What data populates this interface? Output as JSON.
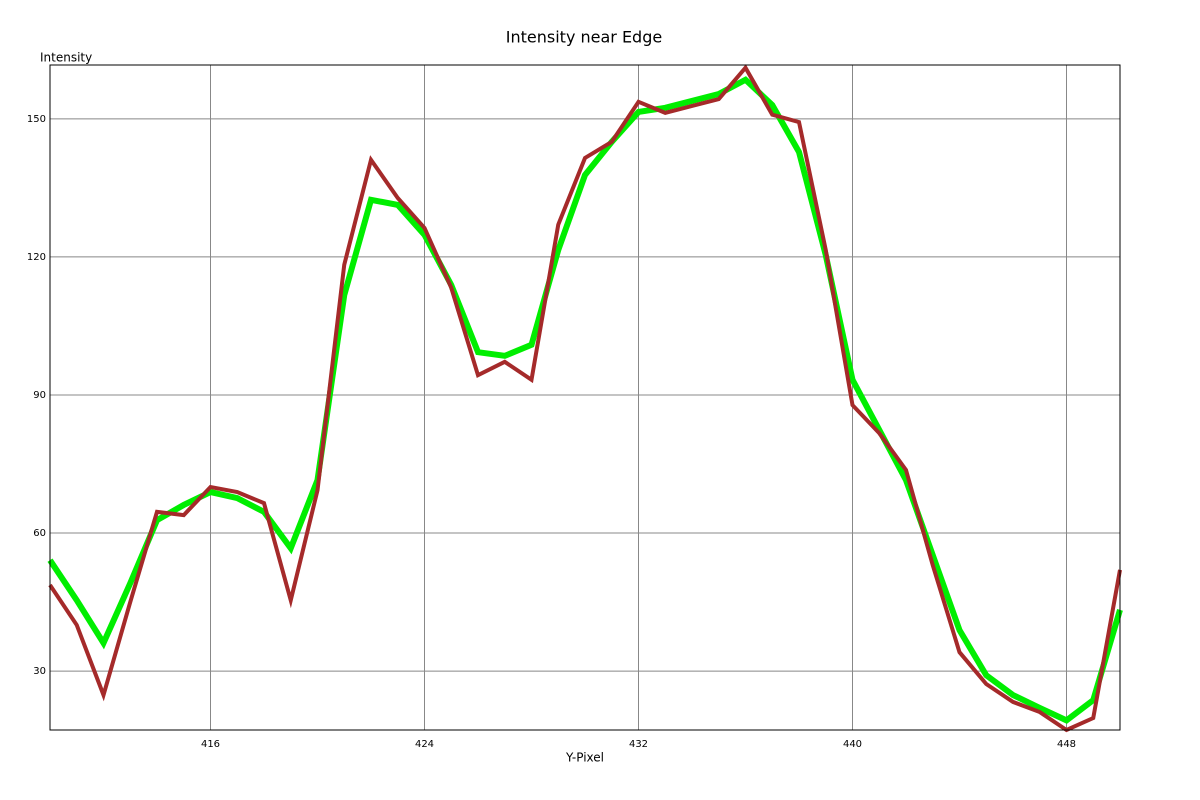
{
  "chart_data": {
    "type": "line",
    "title": "Intensity near Edge",
    "x_label": "Y-Pixel",
    "y_label": "Intensity",
    "x": [
      410,
      411,
      412,
      413,
      414,
      415,
      416,
      417,
      418,
      419,
      420,
      421,
      422,
      423,
      424,
      425,
      426,
      427,
      428,
      429,
      430,
      431,
      432,
      433,
      434,
      435,
      436,
      437,
      438,
      439,
      440,
      441,
      442,
      443,
      444,
      445,
      446,
      447,
      448,
      449,
      450
    ],
    "series": [
      {
        "color": "#00ee00",
        "values": [
          54.1,
          45.4,
          36.1,
          49.1,
          62.8,
          66.1,
          68.9,
          67.6,
          64.6,
          56.7,
          71.5,
          111.7,
          132.4,
          131.3,
          124.8,
          113.9,
          99.3,
          98.5,
          100.9,
          121.5,
          137.8,
          145,
          151.5,
          152.4,
          153.9,
          155.4,
          158.5,
          153,
          142.8,
          120.4,
          93.3,
          82.4,
          71.5,
          55.2,
          38.9,
          29.1,
          24.8,
          22,
          19.3,
          23.7,
          43.3
        ]
      },
      {
        "color": "#a52a2a",
        "values": [
          48.7,
          40,
          24.8,
          45,
          64.6,
          63.9,
          70,
          68.9,
          66.5,
          45.4,
          69.3,
          118.3,
          141.1,
          132.8,
          126.3,
          113.3,
          94.3,
          97.2,
          93.3,
          127,
          141.5,
          145,
          153.7,
          151.3,
          152.8,
          154.3,
          161.1,
          150.9,
          149.3,
          121.5,
          87.8,
          81.7,
          73.7,
          53,
          34.1,
          27.2,
          23.3,
          21.1,
          17.2,
          19.8,
          52
        ]
      }
    ],
    "xlim": [
      410,
      450
    ],
    "xticks": [
      416,
      424,
      432,
      440,
      448
    ],
    "ylim": [
      17.2,
      161.7
    ],
    "yticks": [
      30,
      60,
      90,
      120,
      150
    ],
    "grid": true
  }
}
